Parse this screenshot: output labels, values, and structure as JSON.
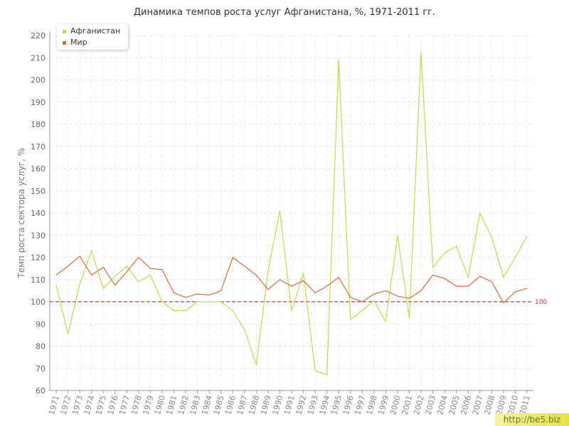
{
  "chart_data": {
    "type": "line",
    "title": "Динамика темпов роста услуг Афганистана, %, 1971-2011 гг.",
    "ylabel": "Темп роста сектора услуг, %",
    "xlabel": "",
    "ylim": [
      60,
      220
    ],
    "yticks": [
      60,
      70,
      80,
      90,
      100,
      110,
      120,
      130,
      140,
      150,
      160,
      170,
      180,
      190,
      200,
      210,
      220
    ],
    "x": [
      1971,
      1972,
      1973,
      1974,
      1975,
      1976,
      1977,
      1978,
      1979,
      1980,
      1981,
      1982,
      1983,
      1984,
      1985,
      1986,
      1987,
      1988,
      1989,
      1990,
      1991,
      1992,
      1993,
      1994,
      1995,
      1996,
      1997,
      1998,
      1999,
      2000,
      2001,
      2002,
      2003,
      2004,
      2005,
      2006,
      2007,
      2008,
      2009,
      2010,
      2011
    ],
    "grid": true,
    "legend_position": "top-left",
    "reference_line": {
      "value": 100,
      "label": "100",
      "color": "#8b1a1a"
    },
    "series": [
      {
        "name": "Афганистан",
        "color": "#c0dc4a",
        "values": [
          107.5,
          85.5,
          108,
          123,
          106,
          111.5,
          116,
          109,
          112,
          100,
          96,
          96,
          100,
          100,
          100,
          96,
          87.5,
          71.5,
          114,
          141,
          96,
          113,
          69,
          67,
          209,
          92,
          96,
          100.5,
          91,
          130,
          92.5,
          212.5,
          115.5,
          122,
          125,
          111,
          140,
          129,
          111,
          120,
          129.5
        ]
      },
      {
        "name": "Мир",
        "color": "#dd6b3d",
        "values": [
          112,
          116,
          120.5,
          112,
          115.5,
          107.5,
          113.5,
          120,
          115,
          114.5,
          104,
          102,
          103.5,
          103,
          105,
          120,
          116,
          112,
          105.5,
          110,
          107,
          109.5,
          104,
          107,
          111,
          102,
          100,
          103.5,
          105,
          102.5,
          101.5,
          105,
          112,
          110.5,
          107,
          107,
          111.5,
          109,
          99.5,
          104.5,
          106
        ]
      }
    ]
  },
  "watermark": "http://be5.biz"
}
